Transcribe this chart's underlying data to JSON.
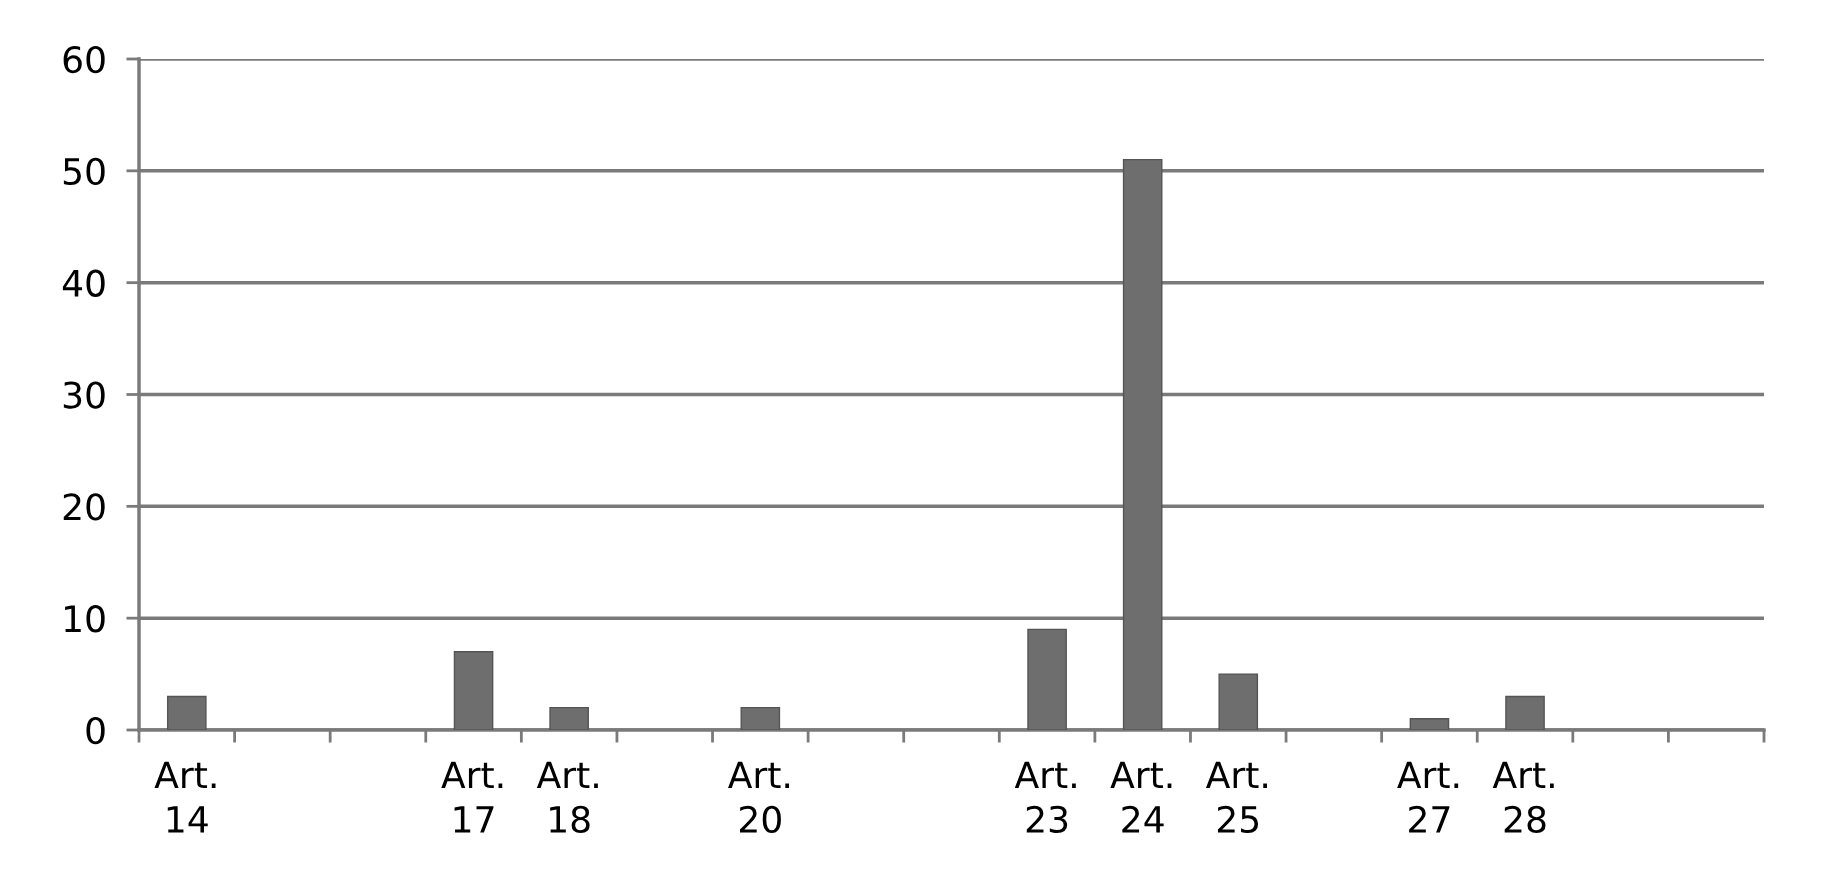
{
  "chart_data": {
    "type": "bar",
    "categories": [
      "Art. 14",
      null,
      null,
      "Art. 17",
      "Art. 18",
      null,
      "Art. 20",
      null,
      null,
      "Art. 23",
      "Art. 24",
      "Art. 25",
      null,
      "Art. 27",
      "Art. 28",
      null,
      null
    ],
    "values": [
      3,
      null,
      null,
      7,
      2,
      null,
      2,
      null,
      null,
      9,
      51,
      5,
      null,
      1,
      3,
      null,
      null
    ],
    "color": "#6e6e6e",
    "ylim": [
      0,
      60
    ],
    "yticks": [
      0,
      10,
      20,
      30,
      40,
      50,
      60
    ],
    "grid": "y",
    "legend": false
  }
}
